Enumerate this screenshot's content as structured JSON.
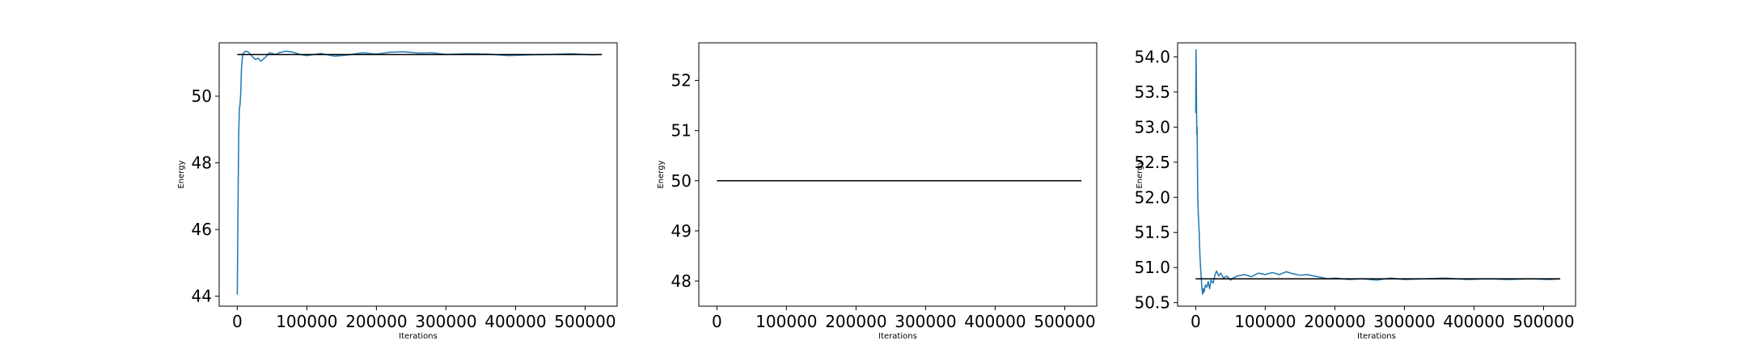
{
  "colors": {
    "series": "#1f77b4",
    "reference": "#000000",
    "frame": "#000000"
  },
  "chart_data": [
    {
      "type": "line",
      "xlabel": "Iterations",
      "ylabel": "Energy",
      "xlim": [
        -26000,
        546000
      ],
      "ylim": [
        43.7,
        51.6
      ],
      "xticks": [
        0,
        100000,
        200000,
        300000,
        400000,
        500000
      ],
      "xtick_labels": [
        "0",
        "100000",
        "200000",
        "300000",
        "400000",
        "500000"
      ],
      "yticks": [
        44,
        46,
        48,
        50
      ],
      "ytick_labels": [
        "44",
        "46",
        "48",
        "50"
      ],
      "grid": false,
      "legend": "none",
      "reference_line": {
        "x": [
          0,
          524000
        ],
        "y": 51.25
      },
      "series": [
        {
          "x": [
            0,
            1000,
            2000,
            3000,
            4000,
            5000,
            6000,
            7000,
            8000,
            10000,
            12000,
            15000,
            18000,
            22000,
            26000,
            30000,
            34000,
            38000,
            42000,
            46000,
            50000,
            55000,
            60000,
            70000,
            80000,
            90000,
            100000,
            120000,
            140000,
            160000,
            180000,
            200000,
            220000,
            240000,
            260000,
            280000,
            300000,
            330000,
            360000,
            390000,
            420000,
            450000,
            480000,
            510000,
            524000
          ],
          "y": [
            44.05,
            46.5,
            48.8,
            49.6,
            49.75,
            50.1,
            50.8,
            51.1,
            51.25,
            51.32,
            51.35,
            51.33,
            51.28,
            51.18,
            51.1,
            51.14,
            51.05,
            51.12,
            51.2,
            51.3,
            51.28,
            51.25,
            51.3,
            51.35,
            51.32,
            51.25,
            51.22,
            51.28,
            51.2,
            51.24,
            51.3,
            51.26,
            51.32,
            51.33,
            51.29,
            51.3,
            51.25,
            51.27,
            51.26,
            51.22,
            51.24,
            51.25,
            51.27,
            51.24,
            51.25
          ]
        }
      ]
    },
    {
      "type": "line",
      "xlabel": "Iterations",
      "ylabel": "Energy",
      "xlim": [
        -26000,
        546000
      ],
      "ylim": [
        47.5,
        52.75
      ],
      "xticks": [
        0,
        100000,
        200000,
        300000,
        400000,
        500000
      ],
      "xtick_labels": [
        "0",
        "100000",
        "200000",
        "300000",
        "400000",
        "500000"
      ],
      "yticks": [
        48,
        49,
        50,
        51,
        52
      ],
      "ytick_labels": [
        "48",
        "49",
        "50",
        "51",
        "52"
      ],
      "grid": false,
      "legend": "none",
      "reference_line": {
        "x": [
          0,
          524000
        ],
        "y": 50.0
      },
      "series": [
        {
          "x": [
            0,
            524000
          ],
          "y": [
            50.0,
            50.0
          ]
        }
      ]
    },
    {
      "type": "line",
      "xlabel": "Iterations",
      "ylabel": "Energy",
      "xlim": [
        -26000,
        546000
      ],
      "ylim": [
        50.45,
        54.2
      ],
      "xticks": [
        0,
        100000,
        200000,
        300000,
        400000,
        500000
      ],
      "xtick_labels": [
        "0",
        "100000",
        "200000",
        "300000",
        "400000",
        "500000"
      ],
      "yticks": [
        50.5,
        51.0,
        51.5,
        52.0,
        52.5,
        53.0,
        53.5,
        54.0
      ],
      "ytick_labels": [
        "50.5",
        "51.0",
        "51.5",
        "52.0",
        "52.5",
        "53.0",
        "53.5",
        "54.0"
      ],
      "grid": false,
      "legend": "none",
      "reference_line": {
        "x": [
          0,
          524000
        ],
        "y": 50.84
      },
      "series": [
        {
          "x": [
            0,
            500,
            1000,
            1500,
            2000,
            3000,
            4000,
            5000,
            6000,
            7000,
            8000,
            9000,
            10000,
            11000,
            12000,
            14000,
            16000,
            18000,
            20000,
            22000,
            25000,
            28000,
            30000,
            33000,
            36000,
            40000,
            45000,
            50000,
            55000,
            60000,
            70000,
            80000,
            90000,
            100000,
            110000,
            120000,
            130000,
            140000,
            150000,
            160000,
            170000,
            180000,
            190000,
            200000,
            220000,
            240000,
            260000,
            280000,
            300000,
            330000,
            360000,
            390000,
            420000,
            450000,
            480000,
            510000,
            524000
          ],
          "y": [
            53.2,
            54.1,
            53.6,
            52.9,
            53.0,
            52.0,
            51.7,
            51.5,
            51.2,
            51.0,
            50.85,
            50.7,
            50.62,
            50.7,
            50.65,
            50.75,
            50.72,
            50.8,
            50.7,
            50.82,
            50.78,
            50.9,
            50.95,
            50.88,
            50.92,
            50.85,
            50.88,
            50.82,
            50.86,
            50.88,
            50.9,
            50.87,
            50.92,
            50.9,
            50.93,
            50.9,
            50.94,
            50.91,
            50.89,
            50.9,
            50.88,
            50.86,
            50.84,
            50.85,
            50.83,
            50.84,
            50.82,
            50.85,
            50.83,
            50.84,
            50.85,
            50.83,
            50.84,
            50.83,
            50.84,
            50.83,
            50.84
          ]
        }
      ]
    }
  ]
}
